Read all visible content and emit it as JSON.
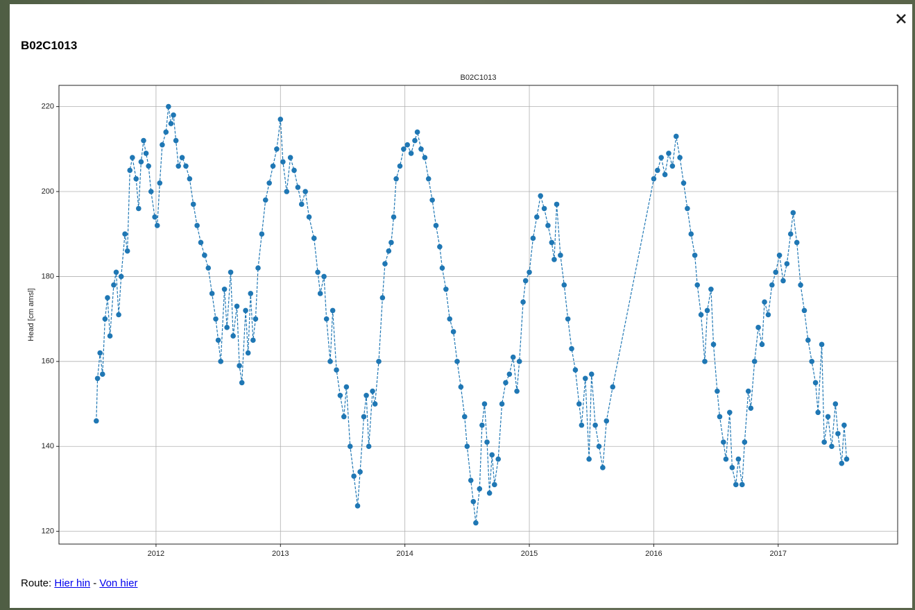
{
  "popup": {
    "title": "B02C1013",
    "route": {
      "label": "Route:",
      "links": [
        "Hier hin",
        "Von hier"
      ],
      "separator": "-"
    }
  },
  "chart_data": {
    "type": "line",
    "title": "B02C1013",
    "y_label": "Head [cm amsl]",
    "xlim": [
      2011.22,
      2017.96
    ],
    "xticks": [
      2012,
      2013,
      2014,
      2015,
      2016,
      2017
    ],
    "ylim": [
      117,
      225
    ],
    "yticks": [
      120,
      140,
      160,
      180,
      200,
      220
    ],
    "grid": true,
    "markers": true,
    "line_style": "dashed",
    "x": [
      2011.52,
      2011.53,
      2011.55,
      2011.57,
      2011.59,
      2011.61,
      2011.63,
      2011.66,
      2011.68,
      2011.7,
      2011.72,
      2011.75,
      2011.77,
      2011.79,
      2011.81,
      2011.84,
      2011.86,
      2011.88,
      2011.9,
      2011.92,
      2011.94,
      2011.96,
      2011.99,
      2012.01,
      2012.03,
      2012.05,
      2012.08,
      2012.1,
      2012.12,
      2012.14,
      2012.16,
      2012.18,
      2012.21,
      2012.24,
      2012.27,
      2012.3,
      2012.33,
      2012.36,
      2012.39,
      2012.42,
      2012.45,
      2012.48,
      2012.5,
      2012.52,
      2012.55,
      2012.57,
      2012.6,
      2012.62,
      2012.65,
      2012.67,
      2012.69,
      2012.72,
      2012.74,
      2012.76,
      2012.78,
      2012.8,
      2012.82,
      2012.85,
      2012.88,
      2012.91,
      2012.94,
      2012.97,
      2013.0,
      2013.02,
      2013.05,
      2013.08,
      2013.11,
      2013.14,
      2013.17,
      2013.2,
      2013.23,
      2013.27,
      2013.3,
      2013.32,
      2013.35,
      2013.37,
      2013.4,
      2013.42,
      2013.45,
      2013.48,
      2013.51,
      2013.53,
      2013.56,
      2013.59,
      2013.62,
      2013.64,
      2013.67,
      2013.69,
      2013.71,
      2013.74,
      2013.76,
      2013.79,
      2013.82,
      2013.84,
      2013.87,
      2013.89,
      2013.91,
      2013.93,
      2013.96,
      2013.99,
      2014.02,
      2014.05,
      2014.08,
      2014.1,
      2014.13,
      2014.16,
      2014.19,
      2014.22,
      2014.25,
      2014.28,
      2014.3,
      2014.33,
      2014.36,
      2014.39,
      2014.42,
      2014.45,
      2014.48,
      2014.5,
      2014.53,
      2014.55,
      2014.57,
      2014.6,
      2014.62,
      2014.64,
      2014.66,
      2014.68,
      2014.7,
      2014.72,
      2014.75,
      2014.78,
      2014.81,
      2014.84,
      2014.87,
      2014.9,
      2014.92,
      2014.95,
      2014.97,
      2015.0,
      2015.03,
      2015.06,
      2015.09,
      2015.12,
      2015.15,
      2015.18,
      2015.2,
      2015.22,
      2015.25,
      2015.28,
      2015.31,
      2015.34,
      2015.37,
      2015.4,
      2015.42,
      2015.45,
      2015.48,
      2015.5,
      2015.53,
      2015.56,
      2015.59,
      2015.62,
      2015.67,
      2016.0,
      2016.03,
      2016.06,
      2016.09,
      2016.12,
      2016.15,
      2016.18,
      2016.21,
      2016.24,
      2016.27,
      2016.3,
      2016.33,
      2016.35,
      2016.38,
      2016.41,
      2016.43,
      2016.46,
      2016.48,
      2016.51,
      2016.53,
      2016.56,
      2016.58,
      2016.61,
      2016.63,
      2016.66,
      2016.68,
      2016.71,
      2016.73,
      2016.76,
      2016.78,
      2016.81,
      2016.84,
      2016.87,
      2016.89,
      2016.92,
      2016.95,
      2016.98,
      2017.01,
      2017.04,
      2017.07,
      2017.1,
      2017.12,
      2017.15,
      2017.18,
      2017.21,
      2017.24,
      2017.27,
      2017.3,
      2017.32,
      2017.35,
      2017.37,
      2017.4,
      2017.43,
      2017.46,
      2017.48,
      2017.51,
      2017.53,
      2017.55
    ],
    "series": [
      {
        "name": "B02C1013",
        "color": "#1f77b4",
        "values": [
          146,
          156,
          162,
          157,
          170,
          175,
          166,
          178,
          181,
          171,
          180,
          190,
          186,
          205,
          208,
          203,
          196,
          207,
          212,
          209,
          206,
          200,
          194,
          192,
          202,
          211,
          214,
          220,
          216,
          218,
          212,
          206,
          208,
          206,
          203,
          197,
          192,
          188,
          185,
          182,
          176,
          170,
          165,
          160,
          177,
          168,
          181,
          166,
          173,
          159,
          155,
          172,
          162,
          176,
          165,
          170,
          182,
          190,
          198,
          202,
          206,
          210,
          217,
          207,
          200,
          208,
          205,
          201,
          197,
          200,
          194,
          189,
          181,
          176,
          180,
          170,
          160,
          172,
          158,
          152,
          147,
          154,
          140,
          133,
          126,
          134,
          147,
          152,
          140,
          153,
          150,
          160,
          175,
          183,
          186,
          188,
          194,
          203,
          206,
          210,
          211,
          209,
          212,
          214,
          210,
          208,
          203,
          198,
          192,
          187,
          182,
          177,
          170,
          167,
          160,
          154,
          147,
          140,
          132,
          127,
          122,
          130,
          145,
          150,
          141,
          129,
          138,
          131,
          137,
          150,
          155,
          157,
          161,
          153,
          160,
          174,
          179,
          181,
          189,
          194,
          199,
          196,
          192,
          188,
          184,
          197,
          185,
          178,
          170,
          163,
          158,
          150,
          145,
          156,
          137,
          157,
          145,
          140,
          135,
          146,
          154,
          203,
          205,
          208,
          204,
          209,
          206,
          213,
          208,
          202,
          196,
          190,
          185,
          178,
          171,
          160,
          172,
          177,
          164,
          153,
          147,
          141,
          137,
          148,
          135,
          131,
          137,
          131,
          141,
          153,
          149,
          160,
          168,
          164,
          174,
          171,
          178,
          181,
          185,
          179,
          183,
          190,
          195,
          188,
          178,
          172,
          165,
          160,
          155,
          148,
          164,
          141,
          147,
          140,
          150,
          143,
          136,
          145,
          137
        ]
      }
    ]
  }
}
